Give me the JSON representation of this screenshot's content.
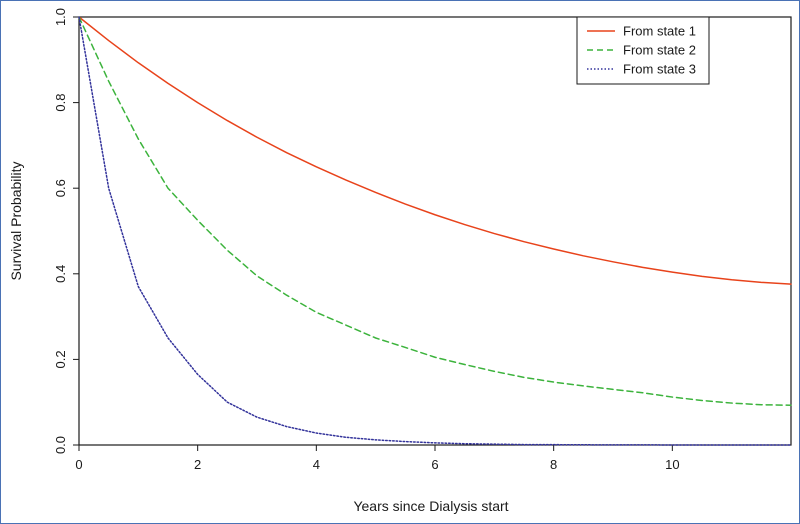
{
  "chart_data": {
    "type": "line",
    "title": "",
    "xlabel": "Years since Dialysis start",
    "ylabel": "Survival Probability",
    "xlim": [
      0,
      12
    ],
    "ylim": [
      0,
      1
    ],
    "x_ticks": [
      0,
      2,
      4,
      6,
      8,
      10
    ],
    "x_tick_labels": [
      "0",
      "2",
      "4",
      "6",
      "8",
      "10"
    ],
    "y_ticks": [
      0,
      0.2,
      0.4,
      0.6,
      0.8,
      1.0
    ],
    "y_tick_labels": [
      "0.0",
      "0.2",
      "0.4",
      "0.6",
      "0.8",
      "1.0"
    ],
    "grid": false,
    "legend_position": "top-right",
    "x": [
      0,
      0.5,
      1,
      1.5,
      2,
      2.5,
      3,
      3.5,
      4,
      4.5,
      5,
      5.5,
      6,
      6.5,
      7,
      7.5,
      8,
      8.5,
      9,
      9.5,
      10,
      10.5,
      11,
      11.5,
      12
    ],
    "series": [
      {
        "name": "From state 1",
        "color": "#e8431b",
        "dash": "solid",
        "values": [
          1.0,
          0.945,
          0.893,
          0.845,
          0.8,
          0.758,
          0.719,
          0.683,
          0.65,
          0.619,
          0.59,
          0.563,
          0.538,
          0.515,
          0.494,
          0.475,
          0.458,
          0.442,
          0.428,
          0.415,
          0.404,
          0.394,
          0.386,
          0.38,
          0.376
        ]
      },
      {
        "name": "From state 2",
        "color": "#3cb33c",
        "dash": "dashed",
        "values": [
          1.0,
          0.85,
          0.715,
          0.6,
          0.525,
          0.455,
          0.395,
          0.35,
          0.31,
          0.28,
          0.25,
          0.228,
          0.205,
          0.188,
          0.172,
          0.158,
          0.147,
          0.138,
          0.13,
          0.122,
          0.112,
          0.104,
          0.098,
          0.094,
          0.093
        ]
      },
      {
        "name": "From state 3",
        "color": "#33339b",
        "dash": "dotted",
        "values": [
          1.0,
          0.6,
          0.37,
          0.25,
          0.165,
          0.1,
          0.065,
          0.043,
          0.028,
          0.018,
          0.012,
          0.008,
          0.005,
          0.003,
          0.002,
          0.001,
          0.0008,
          0.0005,
          0.0003,
          0.0002,
          0.0001,
          0.0,
          0.0,
          0.0,
          0.0
        ]
      }
    ]
  }
}
